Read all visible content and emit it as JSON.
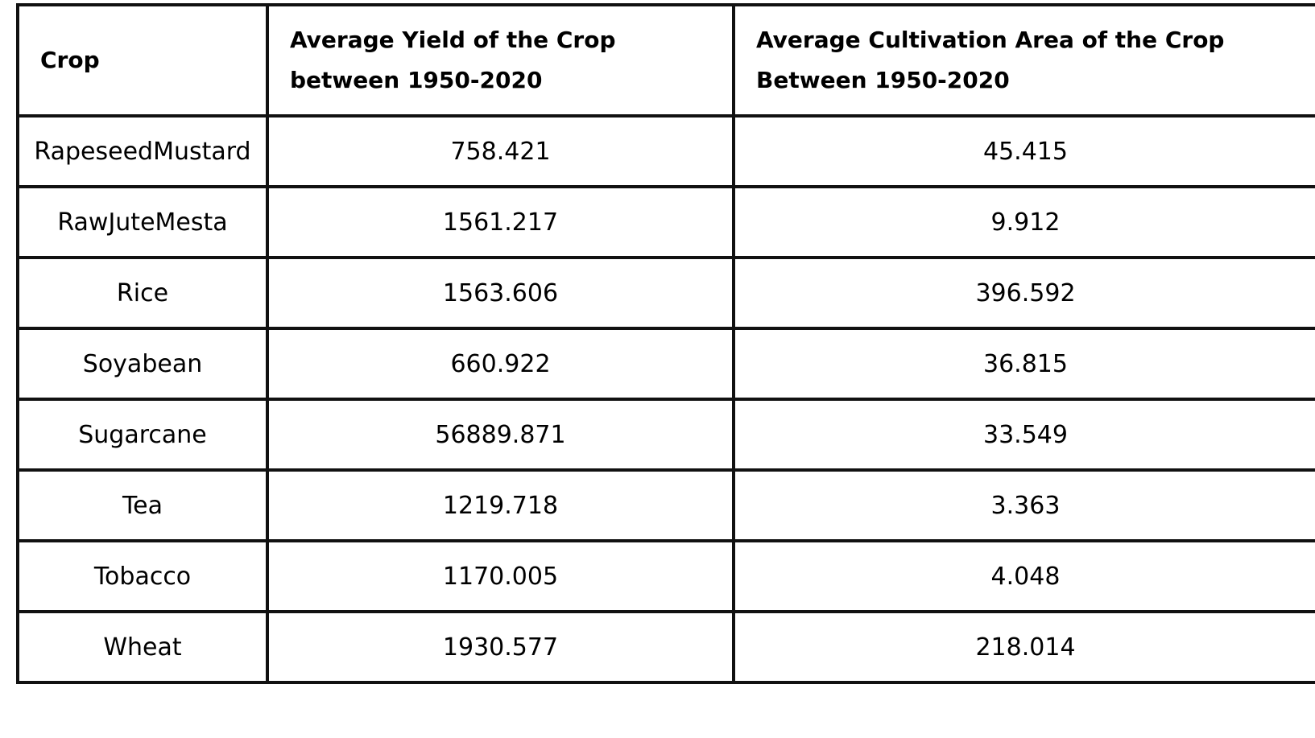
{
  "table": {
    "headers": [
      "Crop",
      "Average Yield of the Crop between 1950-2020",
      "Average Cultivation Area of the Crop Between 1950-2020"
    ],
    "rows": [
      [
        "RapeseedMustard",
        "758.421",
        "45.415"
      ],
      [
        "RawJuteMesta",
        "1561.217",
        "9.912"
      ],
      [
        "Rice",
        "1563.606",
        "396.592"
      ],
      [
        "Soyabean",
        "660.922",
        "36.815"
      ],
      [
        "Sugarcane",
        "56889.871",
        "33.549"
      ],
      [
        "Tea",
        "1219.718",
        "3.363"
      ],
      [
        "Tobacco",
        "1170.005",
        "4.048"
      ],
      [
        "Wheat",
        "1930.577",
        "218.014"
      ]
    ]
  },
  "colors": {
    "border": "#111111",
    "text": "#000000",
    "background": "#ffffff"
  }
}
